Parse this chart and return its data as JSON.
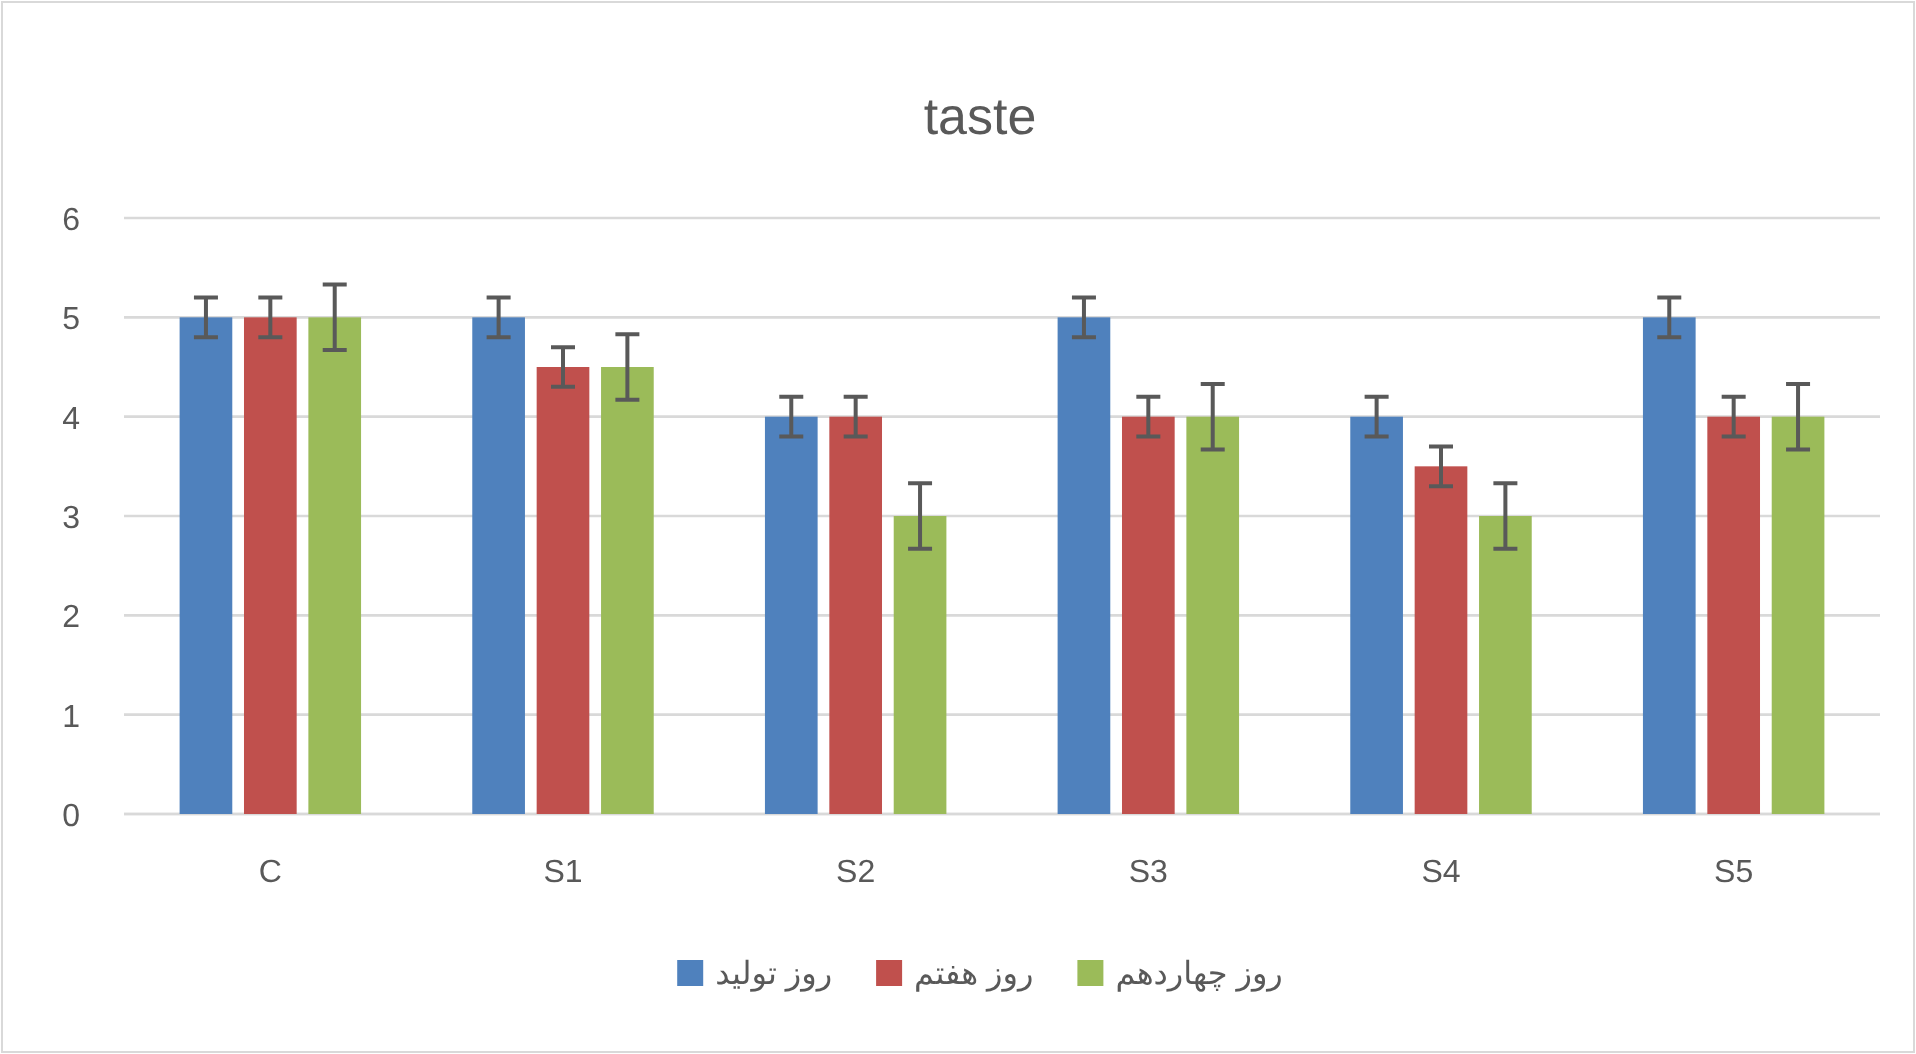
{
  "chart_data": {
    "type": "bar",
    "title": "taste",
    "categories": [
      "C",
      "S1",
      "S2",
      "S3",
      "S4",
      "S5"
    ],
    "series": [
      {
        "name": "روز تولید",
        "color": "#4f81bd",
        "values": [
          5,
          5,
          4,
          5,
          4,
          5
        ],
        "errors": [
          0.2,
          0.2,
          0.2,
          0.2,
          0.2,
          0.2
        ]
      },
      {
        "name": "روز هفتم",
        "color": "#c0504d",
        "values": [
          5,
          4.5,
          4,
          4,
          3.5,
          4
        ],
        "errors": [
          0.2,
          0.2,
          0.2,
          0.2,
          0.2,
          0.2
        ]
      },
      {
        "name": "روز چهاردهم",
        "color": "#9bbb59",
        "values": [
          5,
          4.5,
          3,
          4,
          3,
          4
        ],
        "errors": [
          0.33,
          0.33,
          0.33,
          0.33,
          0.33,
          0.33
        ]
      }
    ],
    "ylim": [
      0,
      6
    ],
    "yticks": [
      0,
      1,
      2,
      3,
      4,
      5,
      6
    ],
    "grid": "y",
    "legend": "bottom"
  }
}
